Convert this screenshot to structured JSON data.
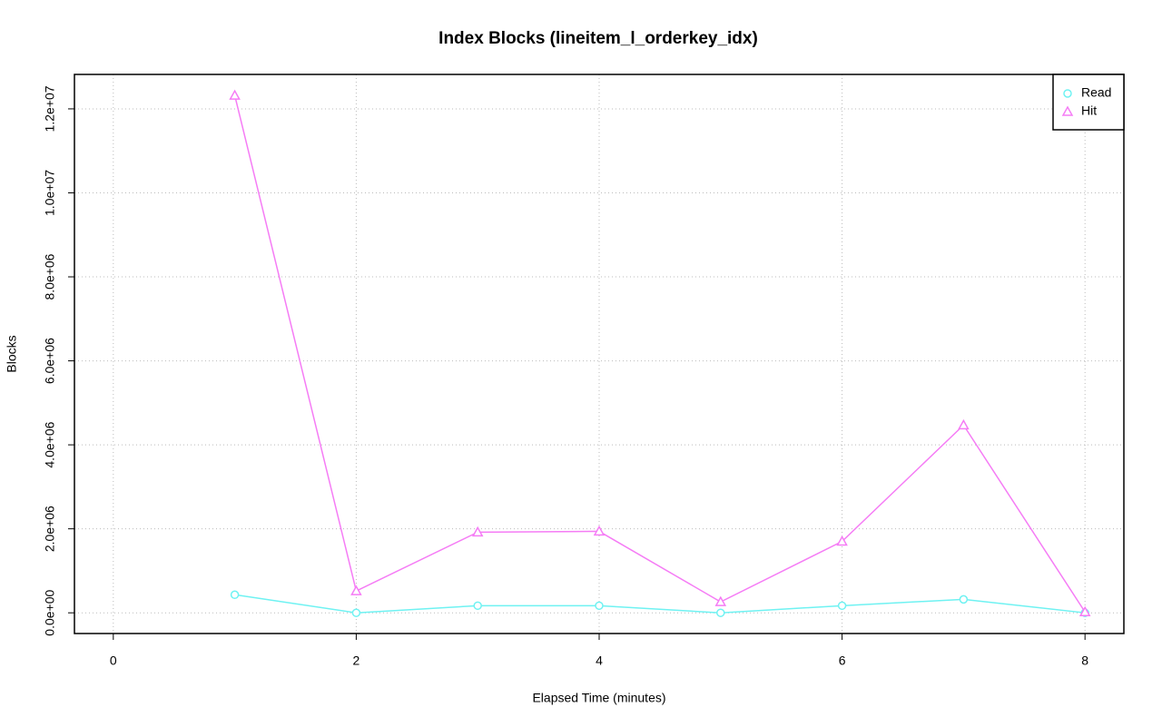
{
  "chart_data": {
    "type": "line",
    "title": "Index Blocks (lineitem_l_orderkey_idx)",
    "xlabel": "Elapsed Time (minutes)",
    "ylabel": "Blocks",
    "x": [
      1,
      2,
      3,
      4,
      5,
      6,
      7,
      8
    ],
    "series": [
      {
        "name": "Read",
        "color": "#6ff2f2",
        "marker": "circle",
        "values": [
          430000,
          0,
          170000,
          170000,
          0,
          170000,
          320000,
          0
        ]
      },
      {
        "name": "Hit",
        "color": "#f57cf5",
        "marker": "triangle",
        "values": [
          12320000,
          520000,
          1920000,
          1940000,
          260000,
          1700000,
          4470000,
          20000
        ]
      }
    ],
    "xlim": [
      -0.32,
      8.32
    ],
    "ylim": [
      -493000,
      12820000
    ],
    "xticks": [
      0,
      2,
      4,
      6,
      8
    ],
    "yticks": [
      {
        "value": 0,
        "label": "0.0e+00"
      },
      {
        "value": 2000000,
        "label": "2.0e+06"
      },
      {
        "value": 4000000,
        "label": "4.0e+06"
      },
      {
        "value": 6000000,
        "label": "6.0e+06"
      },
      {
        "value": 8000000,
        "label": "8.0e+06"
      },
      {
        "value": 10000000,
        "label": "1.0e+07"
      },
      {
        "value": 12000000,
        "label": "1.2e+07"
      }
    ],
    "grid": true,
    "legend": "top-right"
  }
}
